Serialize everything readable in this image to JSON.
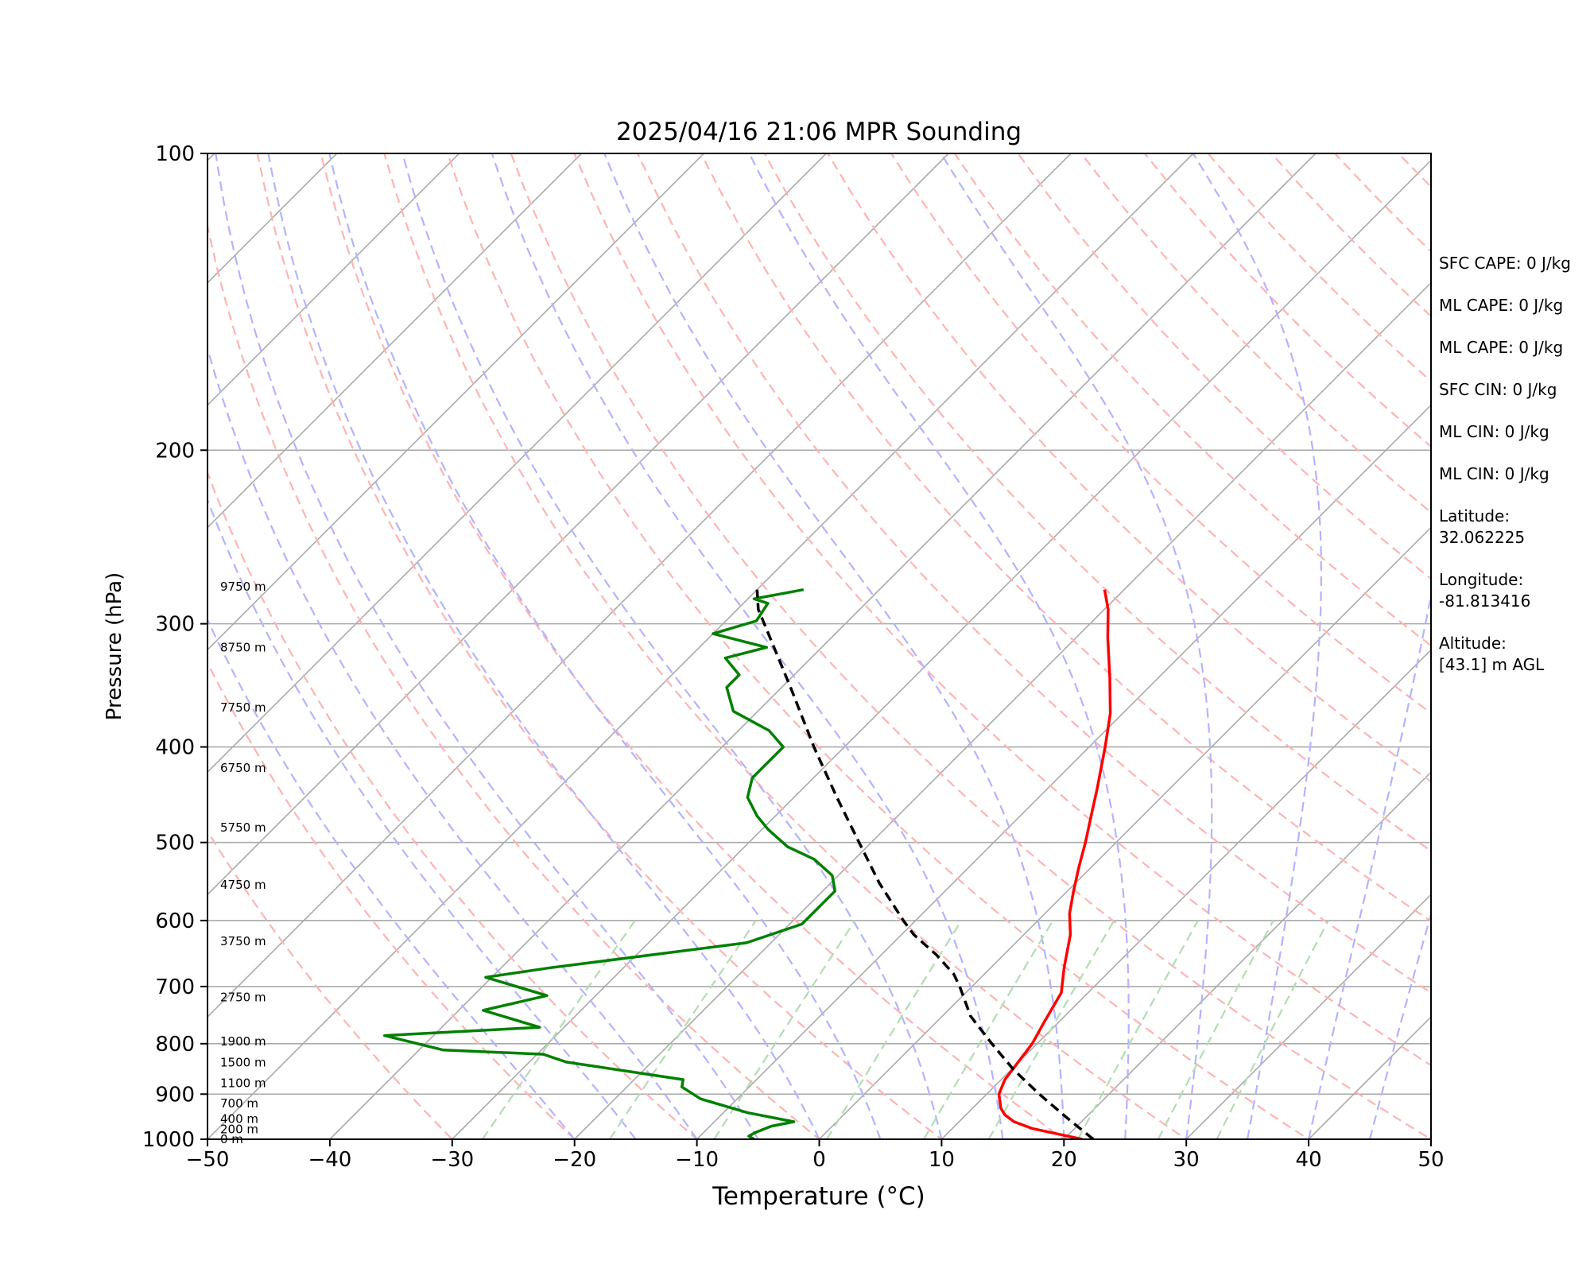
{
  "chart_data": {
    "type": "line",
    "title": "2025/04/16 21:06 MPR Sounding",
    "xlabel": "Temperature (°C)",
    "ylabel": "Pressure (hPa)",
    "xlim": [
      -50,
      50
    ],
    "ylim": [
      1000,
      100
    ],
    "y_scale": "log",
    "x_ticks": [
      -50,
      -40,
      -30,
      -20,
      -10,
      0,
      10,
      20,
      30,
      40,
      50
    ],
    "x_tick_labels": [
      "−50",
      "−40",
      "−30",
      "−20",
      "−10",
      "0",
      "10",
      "20",
      "30",
      "40",
      "50"
    ],
    "y_ticks": [
      1000,
      900,
      800,
      700,
      600,
      500,
      400,
      300,
      200,
      100
    ],
    "y_tick_labels": [
      "1000",
      "900",
      "800",
      "700",
      "600",
      "500",
      "400",
      "300",
      "200",
      "100"
    ],
    "skew": "skew-T log-p",
    "series": [
      {
        "color": "#ff0000",
        "points": [
          [
            1000,
            21.5
          ],
          [
            990,
            19.5
          ],
          [
            975,
            16.5
          ],
          [
            960,
            14.5
          ],
          [
            945,
            13.2
          ],
          [
            930,
            12.3
          ],
          [
            900,
            11.0
          ],
          [
            870,
            10.3
          ],
          [
            830,
            9.9
          ],
          [
            800,
            9.6
          ],
          [
            760,
            8.8
          ],
          [
            710,
            7.8
          ],
          [
            670,
            6.0
          ],
          [
            620,
            3.8
          ],
          [
            590,
            2.0
          ],
          [
            560,
            0.5
          ],
          [
            530,
            -1.0
          ],
          [
            500,
            -2.5
          ],
          [
            470,
            -4.2
          ],
          [
            440,
            -6.0
          ],
          [
            400,
            -8.7
          ],
          [
            370,
            -11.0
          ],
          [
            340,
            -14.0
          ],
          [
            310,
            -17.4
          ],
          [
            290,
            -19.7
          ],
          [
            277,
            -21.6
          ]
        ]
      },
      {
        "color": "#008000",
        "points": [
          [
            1000,
            -5.3
          ],
          [
            993,
            -6.0
          ],
          [
            985,
            -5.8
          ],
          [
            970,
            -5.0
          ],
          [
            960,
            -3.5
          ],
          [
            940,
            -8.0
          ],
          [
            910,
            -13.0
          ],
          [
            885,
            -15.5
          ],
          [
            870,
            -16.0
          ],
          [
            835,
            -27.0
          ],
          [
            820,
            -29.5
          ],
          [
            812,
            -38.0
          ],
          [
            785,
            -44.0
          ],
          [
            770,
            -32.0
          ],
          [
            740,
            -38.0
          ],
          [
            715,
            -34.0
          ],
          [
            685,
            -40.5
          ],
          [
            670,
            -36.0
          ],
          [
            648,
            -28.0
          ],
          [
            632,
            -22.0
          ],
          [
            605,
            -19.0
          ],
          [
            580,
            -19.0
          ],
          [
            560,
            -19.0
          ],
          [
            540,
            -20.5
          ],
          [
            520,
            -23.3
          ],
          [
            505,
            -26.5
          ],
          [
            485,
            -29.5
          ],
          [
            470,
            -31.5
          ],
          [
            450,
            -33.8
          ],
          [
            430,
            -35.0
          ],
          [
            413,
            -35.0
          ],
          [
            400,
            -35.0
          ],
          [
            385,
            -37.5
          ],
          [
            368,
            -42.0
          ],
          [
            348,
            -44.5
          ],
          [
            338,
            -44.5
          ],
          [
            325,
            -47.0
          ],
          [
            317,
            -44.5
          ],
          [
            307,
            -50.0
          ],
          [
            298,
            -47.5
          ],
          [
            286,
            -48.0
          ],
          [
            283,
            -49.5
          ],
          [
            277,
            -46.2
          ]
        ]
      },
      {
        "color": "#000000",
        "dash": "dashed",
        "points": [
          [
            1000,
            22.4
          ],
          [
            950,
            18.4
          ],
          [
            900,
            14.3
          ],
          [
            850,
            10.2
          ],
          [
            800,
            6.3
          ],
          [
            750,
            2.3
          ],
          [
            700,
            -1.0
          ],
          [
            680,
            -2.5
          ],
          [
            650,
            -5.5
          ],
          [
            620,
            -9.0
          ],
          [
            600,
            -11.0
          ],
          [
            550,
            -16.0
          ],
          [
            500,
            -21.0
          ],
          [
            450,
            -26.5
          ],
          [
            400,
            -32.5
          ],
          [
            350,
            -39.0
          ],
          [
            310,
            -45.0
          ],
          [
            290,
            -48.3
          ],
          [
            277,
            -50.0
          ]
        ]
      }
    ],
    "height_labels": [
      {
        "p": 1000,
        "label": "0 m"
      },
      {
        "p": 977,
        "label": "200 m"
      },
      {
        "p": 954,
        "label": "400 m"
      },
      {
        "p": 920,
        "label": "700 m"
      },
      {
        "p": 877,
        "label": "1100 m"
      },
      {
        "p": 836,
        "label": "1500 m"
      },
      {
        "p": 796,
        "label": "1900 m"
      },
      {
        "p": 718,
        "label": "2750 m"
      },
      {
        "p": 630,
        "label": "3750 m"
      },
      {
        "p": 552,
        "label": "4750 m"
      },
      {
        "p": 483,
        "label": "5750 m"
      },
      {
        "p": 420,
        "label": "6750 m"
      },
      {
        "p": 365,
        "label": "7750 m"
      },
      {
        "p": 317,
        "label": "8750 m"
      },
      {
        "p": 275,
        "label": "9750 m"
      }
    ],
    "background_lines": {
      "isotherms_color": "#aaaaaa",
      "dry_adiabats_color": "#ffb3b3",
      "moist_adiabats_color": "#b3b3ff",
      "mixing_ratio_color": "#b3dcb3",
      "pressure_grid_color": "#aaaaaa"
    }
  },
  "stats_panel": [
    "SFC CAPE: 0 J/kg",
    "ML CAPE: 0 J/kg",
    "ML CAPE: 0 J/kg",
    "SFC CIN: 0 J/kg",
    "ML CIN: 0 J/kg",
    "ML CIN: 0 J/kg",
    "Latitude:\n32.062225",
    "Longitude:\n-81.813416",
    "Altitude:\n[43.1] m AGL"
  ]
}
